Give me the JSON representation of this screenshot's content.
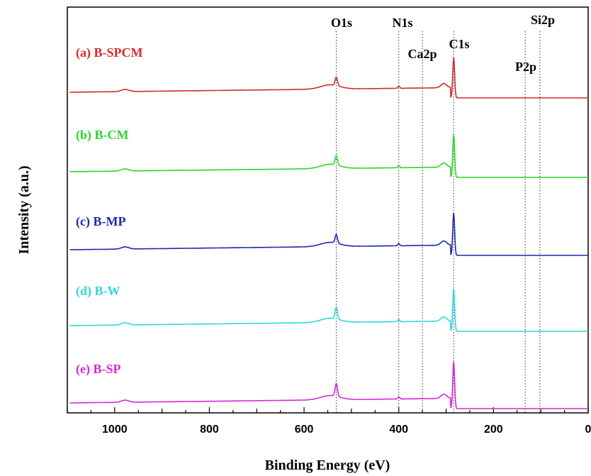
{
  "chart_data": {
    "type": "line",
    "xlabel": "Binding Energy (eV)",
    "ylabel": "Intensity (a.u.)",
    "xlim": [
      1100,
      0
    ],
    "x_reversed": true,
    "x_ticks": [
      1000,
      800,
      600,
      400,
      200,
      0
    ],
    "x_tick_labels": [
      "1000",
      "800",
      "600",
      "400",
      "200",
      "0"
    ],
    "y_ticks_shown": false,
    "grid": false,
    "peak_markers": [
      {
        "label": "O1s",
        "x": 532
      },
      {
        "label": "N1s",
        "x": 400
      },
      {
        "label": "Ca2p",
        "x": 350
      },
      {
        "label": "C1s",
        "x": 284
      },
      {
        "label": "P2p",
        "x": 133
      },
      {
        "label": "Si2p",
        "x": 102
      }
    ],
    "series": [
      {
        "name": "(a) B-SPCM",
        "color": "#d42a2a",
        "o1s_peak": 0.2,
        "c1s_peak": 0.95
      },
      {
        "name": "(b) B-CM",
        "color": "#2bd62b",
        "o1s_peak": 0.22,
        "c1s_peak": 1.0
      },
      {
        "name": "(c) B-MP",
        "color": "#1f2aa8",
        "o1s_peak": 0.2,
        "c1s_peak": 1.0
      },
      {
        "name": "(d) B-W",
        "color": "#2fd8d8",
        "o1s_peak": 0.28,
        "c1s_peak": 1.0
      },
      {
        "name": "(e) B-SP",
        "color": "#d42ad4",
        "o1s_peak": 0.3,
        "c1s_peak": 1.1
      }
    ]
  }
}
